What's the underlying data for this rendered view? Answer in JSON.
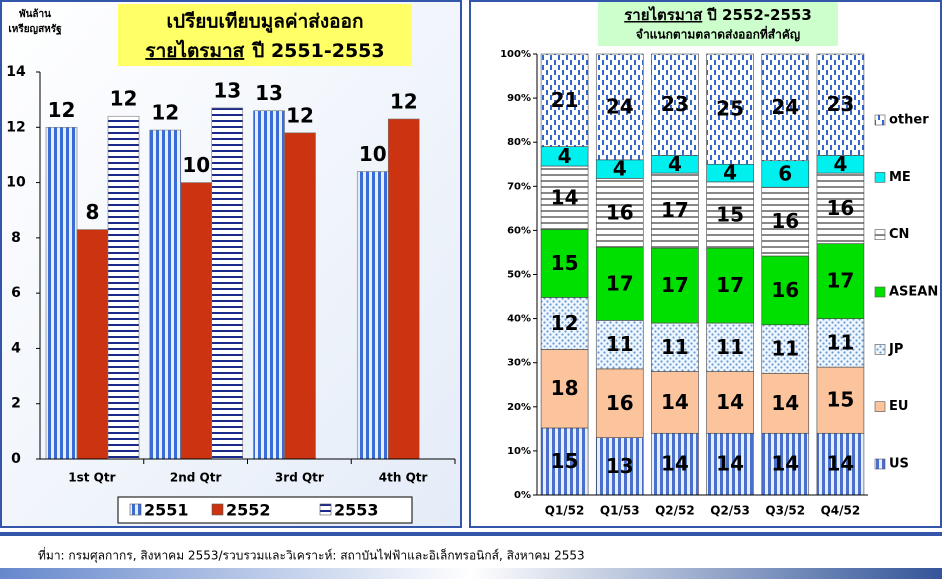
{
  "source": "ที่มา: กรมศุลกากร, สิงหาคม 2553/รวบรวมและวิเคราะห์: สถาบันไฟฟ้าและอิเล็กทรอนิกส์, สิงหาคม 2553",
  "chart_data": [
    {
      "type": "bar",
      "title": "เปรียบเทียบมูลค่าส่งออก",
      "title_underlined": "รายไตรมาส",
      "title_rest": "ปี 2551-2553",
      "ylabel": [
        "พันล้าน",
        "เหรียญสหรัฐ"
      ],
      "categories": [
        "1st Qtr",
        "2nd Qtr",
        "3rd Qtr",
        "4th Qtr"
      ],
      "series": [
        {
          "name": "2551",
          "color": "#3a6cd6",
          "pattern": "vertical-stripes",
          "values": [
            12.0,
            11.9,
            12.6,
            10.4
          ],
          "value_labels": [
            "12",
            "12",
            "13",
            "10"
          ]
        },
        {
          "name": "2552",
          "color": "#cc3311",
          "pattern": "solid",
          "values": [
            8.3,
            10.0,
            11.8,
            12.3
          ],
          "value_labels": [
            "8",
            "10",
            "12",
            "12"
          ]
        },
        {
          "name": "2553",
          "color": "#1a2a8a",
          "pattern": "horizontal-stripes",
          "values": [
            12.4,
            12.7,
            null,
            null
          ],
          "value_labels": [
            "12",
            "13",
            null,
            null
          ]
        }
      ],
      "ylim": [
        0,
        14
      ],
      "yticks": [
        0,
        2,
        4,
        6,
        8,
        10,
        12,
        14
      ],
      "legend": "bottom"
    },
    {
      "type": "stacked-bar",
      "title_underlined": "รายไตรมาส",
      "title_rest": "ปี 2552-2553",
      "subtitle": "จำแนกตามตลาดส่งออกที่สำคัญ",
      "categories": [
        "Q1/52",
        "Q1/53",
        "Q2/52",
        "Q2/53",
        "Q3/52",
        "Q4/52"
      ],
      "series": [
        {
          "name": "US",
          "color": "#4a70cc",
          "pattern": "vertical-stripes",
          "values": [
            15.2,
            13.0,
            14,
            14,
            14,
            14
          ],
          "value_labels": [
            "15",
            "13",
            "14",
            "14",
            "14",
            "14"
          ]
        },
        {
          "name": "EU",
          "color": "#fbc49c",
          "pattern": "solid",
          "values": [
            17.8,
            15.6,
            14,
            14,
            13.6,
            15
          ],
          "value_labels": [
            "18",
            "16",
            "14",
            "14",
            "14",
            "15"
          ]
        },
        {
          "name": "JP",
          "color": "#6a9ad0",
          "pattern": "dots",
          "values": [
            11.8,
            11.0,
            11,
            11,
            11,
            11
          ],
          "value_labels": [
            "12",
            "11",
            "11",
            "11",
            "11",
            "11"
          ]
        },
        {
          "name": "ASEAN",
          "color": "#00e000",
          "pattern": "solid",
          "values": [
            15.4,
            16.6,
            17,
            17,
            15.6,
            17
          ],
          "value_labels": [
            "15",
            "17",
            "17",
            "17",
            "16",
            "17"
          ]
        },
        {
          "name": "CN",
          "color": "#888888",
          "pattern": "horizontal-stripes",
          "values": [
            14.4,
            15.6,
            17,
            15,
            15.6,
            16
          ],
          "value_labels": [
            "14",
            "16",
            "17",
            "15",
            "16",
            "16"
          ]
        },
        {
          "name": "ME",
          "color": "#00f0f0",
          "pattern": "solid",
          "values": [
            4.4,
            4.2,
            4,
            4,
            6,
            4
          ],
          "value_labels": [
            "4",
            "4",
            "4",
            "4",
            "6",
            "4"
          ]
        },
        {
          "name": "other",
          "color": "#3366cc",
          "pattern": "vertical-dashes",
          "values": [
            21.0,
            24.0,
            23,
            25,
            24.2,
            23
          ],
          "value_labels": [
            "21",
            "24",
            "23",
            "25",
            "24",
            "23"
          ]
        }
      ],
      "ylim": [
        0,
        100
      ],
      "yticks": [
        {
          "value": 0,
          "label": "0%"
        },
        {
          "value": 10,
          "label": "10%"
        },
        {
          "value": 20,
          "label": "20%"
        },
        {
          "value": 30,
          "label": "30%"
        },
        {
          "value": 40,
          "label": "40%"
        },
        {
          "value": 50,
          "label": "50%"
        },
        {
          "value": 60,
          "label": "60%"
        },
        {
          "value": 70,
          "label": "70%"
        },
        {
          "value": 80,
          "label": "80%"
        },
        {
          "value": 90,
          "label": "90%"
        },
        {
          "value": 100,
          "label": "100%"
        }
      ],
      "legend": "right"
    }
  ]
}
